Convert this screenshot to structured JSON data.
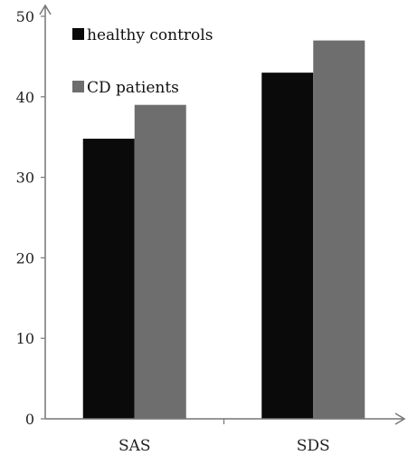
{
  "chart_data": {
    "type": "bar",
    "categories": [
      "SAS",
      "SDS"
    ],
    "series": [
      {
        "name": "healthy controls",
        "values": [
          34.8,
          43
        ],
        "color": "#0a0a0a"
      },
      {
        "name": "CD patients",
        "values": [
          39,
          47
        ],
        "color": "#6e6e6e"
      }
    ],
    "yticks": [
      "0",
      "10",
      "20",
      "30",
      "40",
      "50"
    ],
    "ylim": [
      0,
      50
    ],
    "grid": false,
    "legend_position": "top-left",
    "axis_style": "arrows"
  }
}
